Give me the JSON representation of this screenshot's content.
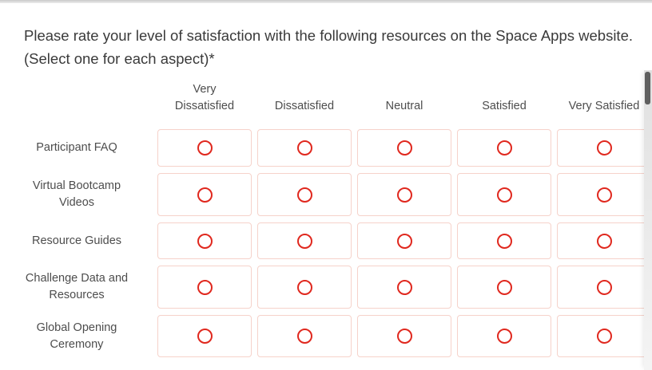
{
  "question": {
    "text": "Please rate your level of satisfaction with the following resources on the Space Apps website. (Select one for each aspect)",
    "required_marker": "*"
  },
  "matrix": {
    "columns": [
      "Very Dissatisfied",
      "Dissatisfied",
      "Neutral",
      "Satisfied",
      "Very Satisfied"
    ],
    "rows": [
      {
        "label": "Participant FAQ"
      },
      {
        "label": "Virtual Bootcamp Videos"
      },
      {
        "label": "Resource Guides"
      },
      {
        "label": "Challenge Data and Resources"
      },
      {
        "label": "Global Opening Ceremony"
      }
    ],
    "selection_state": "none-selected"
  },
  "colors": {
    "radio_red": "#e0281e",
    "cell_border_pink": "#f6d2ca"
  }
}
